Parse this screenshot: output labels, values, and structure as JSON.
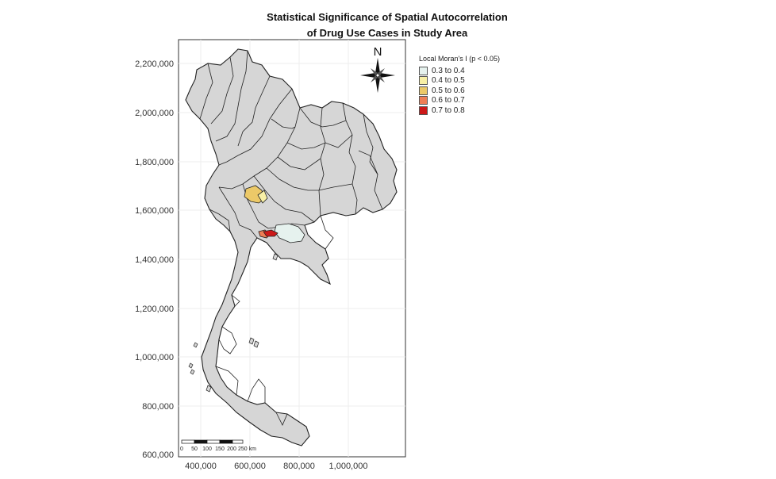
{
  "title": {
    "line1": "Statistical Significance of Spatial Autocorrelation",
    "line2": "of Drug Use Cases in Study Area"
  },
  "axes": {
    "y_ticks": [
      "2,200,000",
      "2,000,000",
      "1,800,000",
      "1,600,000",
      "1,400,000",
      "1,200,000",
      "1,000,000",
      "800,000",
      "600,000"
    ],
    "x_ticks": [
      "400,000",
      "600,000",
      "800,000",
      "1,000,000"
    ],
    "ylim": [
      600000,
      2200000
    ],
    "xlim": [
      400000,
      1000000
    ]
  },
  "north_arrow": {
    "label": "N"
  },
  "legend": {
    "title": "Local Moran's I (p < 0.05)",
    "items": [
      {
        "label": "0.3 to 0.4",
        "color": "#e6f2ee"
      },
      {
        "label": "0.4 to 0.5",
        "color": "#f8f0a6"
      },
      {
        "label": "0.5 to 0.6",
        "color": "#ecc968"
      },
      {
        "label": "0.6 to 0.7",
        "color": "#ee7d55"
      },
      {
        "label": "0.7 to 0.8",
        "color": "#cc1818"
      }
    ]
  },
  "scale_bar": {
    "labels": [
      "0",
      "50",
      "100",
      "150",
      "200",
      "250 km"
    ]
  },
  "colors": {
    "base_fill": "#d6d6d6",
    "border": "#222222",
    "frame": "#333333",
    "grid": "#eeeeee"
  }
}
